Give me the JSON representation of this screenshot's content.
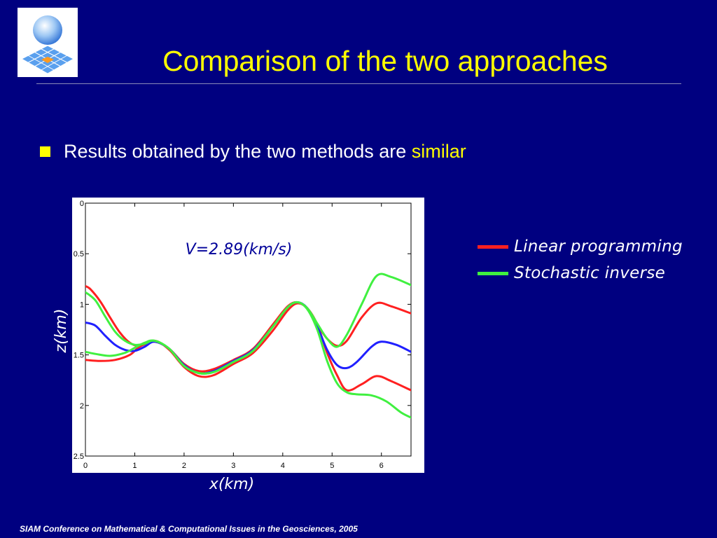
{
  "title": "Comparison of the two approaches",
  "bullet": {
    "text": "Results obtained by the two methods are ",
    "highlight": "similar"
  },
  "chart_data": {
    "type": "line",
    "annotation": "V=2.89(km/s)",
    "xlabel": "x(km)",
    "ylabel": "z(km)",
    "xlim": [
      0,
      6.6
    ],
    "ylim": [
      2.5,
      0
    ],
    "y_inverted": true,
    "x_ticks": [
      0,
      1,
      2,
      3,
      4,
      5,
      6
    ],
    "x_tick_labels": [
      "0",
      "1",
      "2",
      "3",
      "4",
      "5",
      "6"
    ],
    "y_ticks": [
      0,
      0.5,
      1,
      1.5,
      2,
      2.5
    ],
    "y_tick_labels": [
      "0",
      "0.5",
      "1",
      "1.5",
      "2",
      "2.5"
    ],
    "grid": false,
    "legend": [
      {
        "label": "Linear programming",
        "color": "#ff2020"
      },
      {
        "label": "Stochastic inverse",
        "color": "#40f040"
      }
    ],
    "series": [
      {
        "color": "#ff2020",
        "x": [
          0,
          0.1,
          0.3,
          0.5,
          0.7,
          0.9,
          1.1,
          1.4,
          1.7,
          2.0,
          2.3,
          2.6,
          3.0,
          3.4,
          3.8,
          4.1,
          4.3,
          4.5,
          4.7,
          4.9,
          5.1,
          5.3,
          5.6,
          5.9,
          6.2,
          6.6
        ],
        "y": [
          0.82,
          0.85,
          0.97,
          1.13,
          1.28,
          1.38,
          1.41,
          1.37,
          1.44,
          1.59,
          1.66,
          1.64,
          1.55,
          1.44,
          1.2,
          1.02,
          0.98,
          1.04,
          1.2,
          1.34,
          1.41,
          1.36,
          1.13,
          0.99,
          1.02,
          1.09
        ]
      },
      {
        "color": "#ff2020",
        "x": [
          0,
          0.3,
          0.6,
          0.9,
          1.1,
          1.4,
          1.7,
          2.0,
          2.3,
          2.6,
          3.0,
          3.4,
          3.8,
          4.1,
          4.3,
          4.5,
          4.7,
          4.9,
          5.1,
          5.3,
          5.6,
          5.9,
          6.2,
          6.6
        ],
        "y": [
          1.55,
          1.56,
          1.55,
          1.5,
          1.42,
          1.36,
          1.45,
          1.62,
          1.71,
          1.7,
          1.59,
          1.48,
          1.26,
          1.06,
          0.99,
          1.04,
          1.2,
          1.48,
          1.7,
          1.85,
          1.79,
          1.71,
          1.76,
          1.85
        ]
      },
      {
        "color": "#2020ff",
        "x": [
          0,
          0.2,
          0.4,
          0.6,
          0.8,
          1.0,
          1.2,
          1.4,
          1.7,
          2.0,
          2.3,
          2.6,
          3.0,
          3.4,
          3.8,
          4.1,
          4.3,
          4.5,
          4.7,
          4.9,
          5.1,
          5.3,
          5.5,
          5.8,
          6.0,
          6.3,
          6.6
        ],
        "y": [
          1.18,
          1.21,
          1.31,
          1.4,
          1.45,
          1.46,
          1.42,
          1.37,
          1.44,
          1.6,
          1.68,
          1.66,
          1.56,
          1.45,
          1.22,
          1.03,
          0.98,
          1.04,
          1.22,
          1.45,
          1.6,
          1.63,
          1.57,
          1.42,
          1.37,
          1.4,
          1.47
        ]
      },
      {
        "color": "#40f040",
        "x": [
          0,
          0.2,
          0.4,
          0.6,
          0.8,
          1.0,
          1.2,
          1.4,
          1.7,
          2.0,
          2.3,
          2.6,
          3.0,
          3.4,
          3.8,
          4.1,
          4.3,
          4.5,
          4.7,
          4.9,
          5.1,
          5.3,
          5.6,
          5.9,
          6.2,
          6.6
        ],
        "y": [
          0.88,
          0.96,
          1.12,
          1.27,
          1.36,
          1.4,
          1.39,
          1.36,
          1.44,
          1.61,
          1.68,
          1.67,
          1.57,
          1.46,
          1.22,
          1.03,
          0.98,
          1.04,
          1.19,
          1.34,
          1.42,
          1.3,
          1.0,
          0.72,
          0.73,
          0.81
        ]
      },
      {
        "color": "#40f040",
        "x": [
          0,
          0.2,
          0.5,
          0.8,
          1.0,
          1.2,
          1.4,
          1.7,
          2.0,
          2.3,
          2.6,
          3.0,
          3.4,
          3.8,
          4.1,
          4.3,
          4.5,
          4.7,
          4.9,
          5.1,
          5.3,
          5.5,
          5.8,
          6.1,
          6.4,
          6.6
        ],
        "y": [
          1.47,
          1.49,
          1.51,
          1.48,
          1.43,
          1.38,
          1.36,
          1.44,
          1.61,
          1.68,
          1.67,
          1.57,
          1.46,
          1.22,
          1.03,
          0.98,
          1.05,
          1.25,
          1.56,
          1.78,
          1.87,
          1.89,
          1.9,
          1.96,
          2.07,
          2.12
        ]
      }
    ]
  },
  "footer": "SIAM Conference on Mathematical & Computational Issues in the Geosciences, 2005"
}
